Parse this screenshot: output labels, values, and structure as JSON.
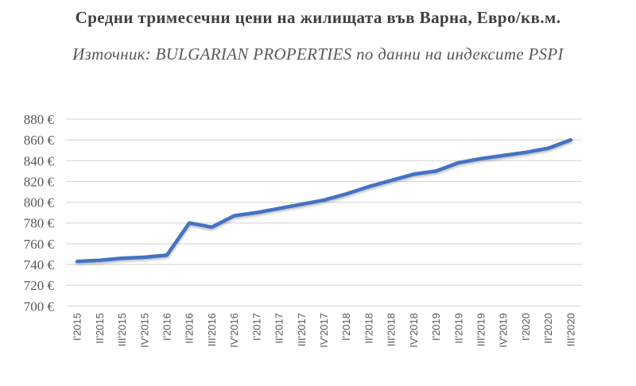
{
  "chart_data": {
    "type": "line",
    "title": "Средни тримесечни цени на жилищата във Варна, Евро/кв.м.",
    "subtitle": "Източник: BULGARIAN PROPERTIES по данни на индексите PSPI",
    "categories": [
      "I'2015",
      "II'2015",
      "III'2015",
      "IV'2015",
      "I'2016",
      "II'2016",
      "III'2016",
      "IV'2016",
      "I'2017",
      "II'2017",
      "III'2017",
      "IV'2017",
      "I'2018",
      "II'2018",
      "III'2018",
      "IV'2018",
      "I'2019",
      "II'2019",
      "III'2019",
      "IV'2019",
      "I'2020",
      "II'2020",
      "III'2020"
    ],
    "values": [
      743,
      744,
      746,
      747,
      749,
      780,
      776,
      787,
      790,
      794,
      798,
      802,
      808,
      815,
      821,
      827,
      830,
      838,
      842,
      845,
      848,
      852,
      860
    ],
    "xlabel": "",
    "ylabel": "",
    "ylim": [
      700,
      880
    ],
    "y_ticks": [
      {
        "value": 880,
        "label": "880 €"
      },
      {
        "value": 860,
        "label": "860 €"
      },
      {
        "value": 840,
        "label": "840 €"
      },
      {
        "value": 820,
        "label": "820 €"
      },
      {
        "value": 800,
        "label": "800 €"
      },
      {
        "value": 780,
        "label": "780 €"
      },
      {
        "value": 760,
        "label": "760 €"
      },
      {
        "value": 740,
        "label": "740 €"
      },
      {
        "value": 720,
        "label": "720 €"
      },
      {
        "value": 700,
        "label": "700 €"
      }
    ],
    "grid": true,
    "legend_position": "none",
    "line_color": "#4472C4",
    "grid_color": "#D9D9D9",
    "title_color": "#3F3F3F",
    "subtitle_color": "#595959",
    "tick_label_color": "#595959"
  }
}
